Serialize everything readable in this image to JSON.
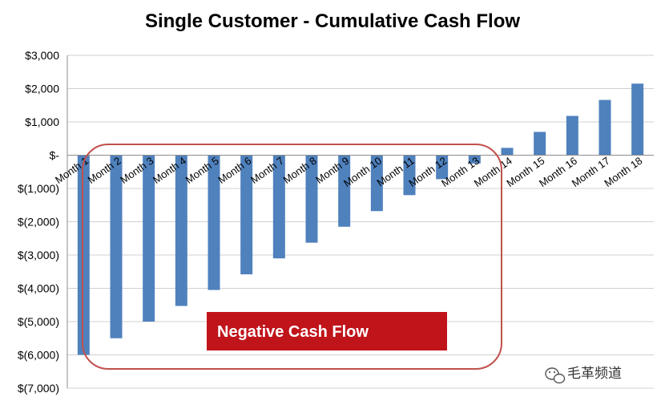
{
  "chart_data": {
    "type": "bar",
    "title": "Single Customer - Cumulative Cash Flow",
    "categories": [
      "Month 1",
      "Month 2",
      "Month 3",
      "Month 4",
      "Month 5",
      "Month 6",
      "Month 7",
      "Month 8",
      "Month 9",
      "Month 10",
      "Month 11",
      "Month 12",
      "Month 13",
      "Month 14",
      "Month 15",
      "Month 16",
      "Month 17",
      "Month 18"
    ],
    "series": [
      {
        "values": [
          -6000,
          -5500,
          -5000,
          -4530,
          -4050,
          -3580,
          -3100,
          -2630,
          -2150,
          -1680,
          -1200,
          -720,
          -250,
          220,
          700,
          1180,
          1660,
          2150
        ]
      }
    ],
    "ylim": [
      -7000,
      3000
    ],
    "yticks": [
      {
        "value": 3000,
        "label": "$3,000"
      },
      {
        "value": 2000,
        "label": "$2,000"
      },
      {
        "value": 1000,
        "label": "$1,000"
      },
      {
        "value": 0,
        "label": "$-"
      },
      {
        "value": -1000,
        "label": "$(1,000)"
      },
      {
        "value": -2000,
        "label": "$(2,000)"
      },
      {
        "value": -3000,
        "label": "$(3,000)"
      },
      {
        "value": -4000,
        "label": "$(4,000)"
      },
      {
        "value": -5000,
        "label": "$(5,000)"
      },
      {
        "value": -6000,
        "label": "$(6,000)"
      },
      {
        "value": -7000,
        "label": "$(7,000)"
      }
    ],
    "grid": true,
    "bar_color": "#4f81bd",
    "annotation": {
      "text": "Negative Cash Flow",
      "fill": "#c0141b",
      "outline": "#c0504d"
    }
  },
  "watermark": {
    "text": "毛革频道",
    "icon": "wechat-icon"
  }
}
